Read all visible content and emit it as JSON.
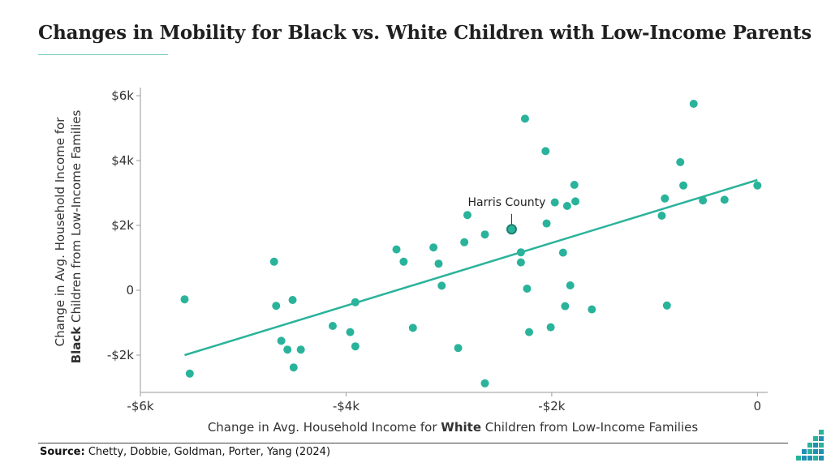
{
  "title": "Changes in Mobility for Black vs. White Children with Low-Income Parents",
  "source": {
    "label": "Source:",
    "text": "Chetty, Dobbie, Goldman, Porter, Yang (2024)"
  },
  "colors": {
    "point": "#2ab39b",
    "trendline": "#2ab39b",
    "highlight_point": "#1f7f6e",
    "axis": "#9a9a9a"
  },
  "chart_data": {
    "type": "scatter",
    "title": "Changes in Mobility for Black vs. White Children with Low-Income Parents",
    "xlabel": {
      "prefix": "Change in Avg. Household Income for ",
      "bold": "White",
      "suffix": " Children from Low-Income Families"
    },
    "ylabel": {
      "line1": "Change in Avg. Household Income for",
      "bold": "Black",
      "line2_suffix": " Children from Low-Income Families"
    },
    "xlim": [
      -6000,
      100
    ],
    "ylim": [
      -3150,
      6250
    ],
    "x_ticks": [
      {
        "value": -6000,
        "label": "-$6k"
      },
      {
        "value": -4000,
        "label": "-$4k"
      },
      {
        "value": -2000,
        "label": "-$2k"
      },
      {
        "value": 0,
        "label": "0"
      }
    ],
    "y_ticks": [
      {
        "value": 6000,
        "label": "$6k"
      },
      {
        "value": 4000,
        "label": "$4k"
      },
      {
        "value": 2000,
        "label": "$2k"
      },
      {
        "value": 0,
        "label": "0"
      },
      {
        "value": -2000,
        "label": "-$2k"
      }
    ],
    "grid": false,
    "legend": "none",
    "points": [
      {
        "x": -5570,
        "y": -280
      },
      {
        "x": -5520,
        "y": -2570
      },
      {
        "x": -4700,
        "y": 880
      },
      {
        "x": -4680,
        "y": -480
      },
      {
        "x": -4630,
        "y": -1560
      },
      {
        "x": -4570,
        "y": -1830
      },
      {
        "x": -4520,
        "y": -300
      },
      {
        "x": -4510,
        "y": -2380
      },
      {
        "x": -4440,
        "y": -1830
      },
      {
        "x": -4130,
        "y": -1100
      },
      {
        "x": -3960,
        "y": -1290
      },
      {
        "x": -3910,
        "y": -1730
      },
      {
        "x": -3910,
        "y": -370
      },
      {
        "x": -3510,
        "y": 1260
      },
      {
        "x": -3440,
        "y": 880
      },
      {
        "x": -3350,
        "y": -1160
      },
      {
        "x": -3150,
        "y": 1320
      },
      {
        "x": -3100,
        "y": 820
      },
      {
        "x": -3070,
        "y": 140
      },
      {
        "x": -2910,
        "y": -1780
      },
      {
        "x": -2850,
        "y": 1480
      },
      {
        "x": -2820,
        "y": 2320
      },
      {
        "x": -2650,
        "y": 1720
      },
      {
        "x": -2650,
        "y": -2870
      },
      {
        "x": -2300,
        "y": 860
      },
      {
        "x": -2300,
        "y": 1170
      },
      {
        "x": -2260,
        "y": 5290
      },
      {
        "x": -2240,
        "y": 50
      },
      {
        "x": -2220,
        "y": -1290
      },
      {
        "x": -2060,
        "y": 4290
      },
      {
        "x": -2050,
        "y": 2060
      },
      {
        "x": -2010,
        "y": -1140
      },
      {
        "x": -1970,
        "y": 2710
      },
      {
        "x": -1890,
        "y": 1160
      },
      {
        "x": -1870,
        "y": -490
      },
      {
        "x": -1850,
        "y": 2600
      },
      {
        "x": -1820,
        "y": 150
      },
      {
        "x": -1780,
        "y": 3250
      },
      {
        "x": -1770,
        "y": 2740
      },
      {
        "x": -1610,
        "y": -590
      },
      {
        "x": -930,
        "y": 2300
      },
      {
        "x": -900,
        "y": 2830
      },
      {
        "x": -880,
        "y": -470
      },
      {
        "x": -750,
        "y": 3950
      },
      {
        "x": -720,
        "y": 3230
      },
      {
        "x": -620,
        "y": 5750
      },
      {
        "x": -530,
        "y": 2770
      },
      {
        "x": -320,
        "y": 2790
      },
      {
        "x": 0,
        "y": 3230
      }
    ],
    "highlight": {
      "x": -2390,
      "y": 1880,
      "label": "Harris County"
    },
    "trendline": {
      "x": [
        -5570,
        0
      ],
      "y": [
        -2000,
        3400
      ]
    }
  }
}
